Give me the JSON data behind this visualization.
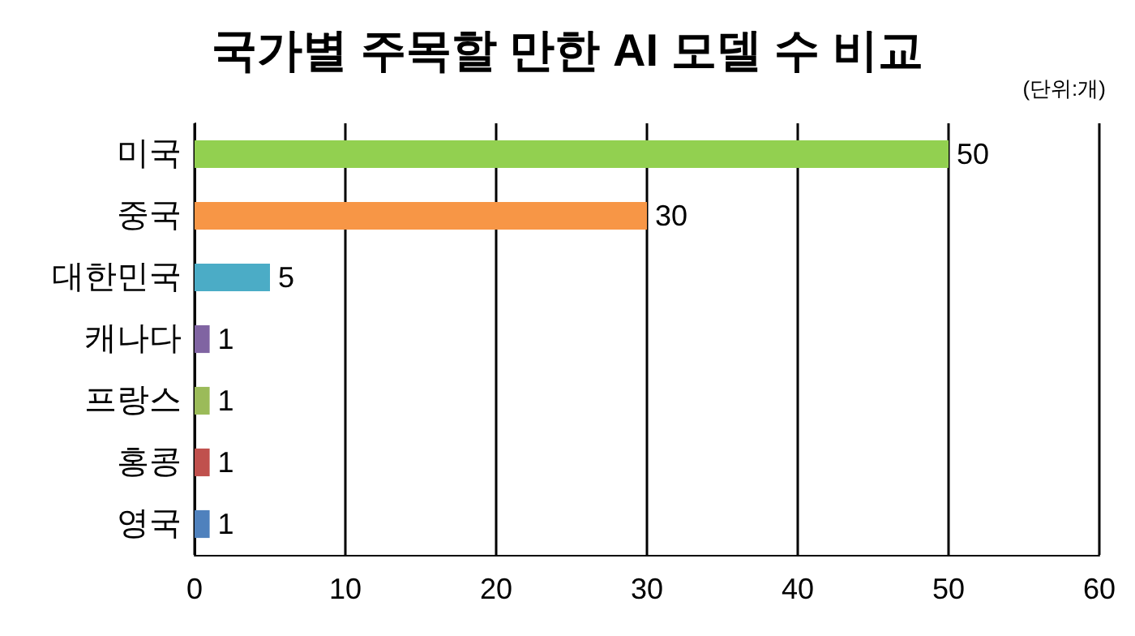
{
  "chart_data": {
    "type": "bar",
    "orientation": "horizontal",
    "title": "국가별 주목할 만한 AI 모델 수 비교",
    "annotations": [
      "(단위:개)"
    ],
    "categories": [
      "미국",
      "중국",
      "대한민국",
      "캐나다",
      "프랑스",
      "홍콩",
      "영국"
    ],
    "values": [
      50,
      30,
      5,
      1,
      1,
      1,
      1
    ],
    "colors": [
      "#92d050",
      "#f79646",
      "#4bacc6",
      "#8064a2",
      "#9bbb59",
      "#c0504d",
      "#4f81bd"
    ],
    "xlim": [
      0,
      60
    ],
    "xticks": [
      0,
      10,
      20,
      30,
      40,
      50,
      60
    ],
    "grid": "x",
    "data_labels": true
  }
}
